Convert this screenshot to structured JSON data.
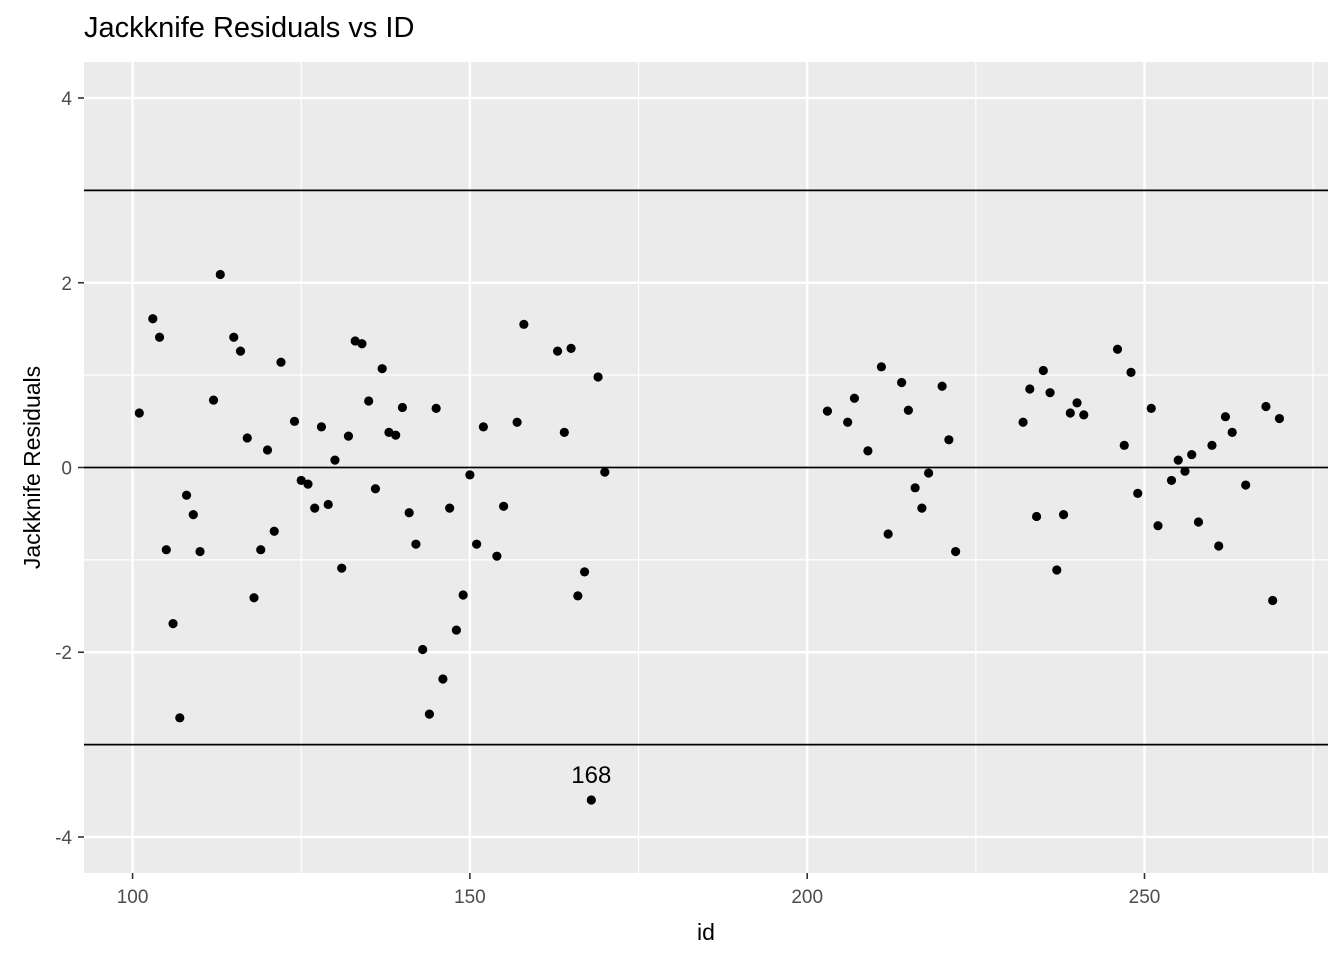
{
  "chart_data": {
    "type": "scatter",
    "title": "Jackknife Residuals vs ID",
    "xlabel": "id",
    "ylabel": "Jackknife Residuals",
    "xlim": [
      92.8,
      277.2
    ],
    "ylim": [
      -4.39,
      4.39
    ],
    "x_ticks": [
      100,
      150,
      200,
      250
    ],
    "y_ticks": [
      -4,
      -2,
      0,
      2,
      4
    ],
    "x_tick_labels": [
      "100",
      "150",
      "200",
      "250"
    ],
    "y_tick_labels": [
      "-4",
      "-2",
      "0",
      "2",
      "4"
    ],
    "grid": true,
    "background": "#ebebeb",
    "point_color": "#000000",
    "hlines": [
      3,
      0,
      -3
    ],
    "annotations": [
      {
        "text": "168",
        "x": 168,
        "y": -3.32
      }
    ],
    "points": [
      [
        101,
        0.59
      ],
      [
        103,
        1.61
      ],
      [
        104,
        1.41
      ],
      [
        105,
        -0.89
      ],
      [
        106,
        -1.69
      ],
      [
        107,
        -2.71
      ],
      [
        108,
        -0.3
      ],
      [
        109,
        -0.51
      ],
      [
        110,
        -0.91
      ],
      [
        112,
        0.73
      ],
      [
        113,
        2.09
      ],
      [
        115,
        1.41
      ],
      [
        116,
        1.26
      ],
      [
        117,
        0.32
      ],
      [
        118,
        -1.41
      ],
      [
        119,
        -0.89
      ],
      [
        120,
        0.19
      ],
      [
        121,
        -0.69
      ],
      [
        122,
        1.14
      ],
      [
        124,
        0.5
      ],
      [
        125,
        -0.14
      ],
      [
        126,
        -0.18
      ],
      [
        127,
        -0.44
      ],
      [
        128,
        0.44
      ],
      [
        129,
        -0.4
      ],
      [
        130,
        0.08
      ],
      [
        131,
        -1.09
      ],
      [
        132,
        0.34
      ],
      [
        133,
        1.37
      ],
      [
        134,
        1.34
      ],
      [
        135,
        0.72
      ],
      [
        136,
        -0.23
      ],
      [
        137,
        1.07
      ],
      [
        138,
        0.38
      ],
      [
        139,
        0.35
      ],
      [
        140,
        0.65
      ],
      [
        141,
        -0.49
      ],
      [
        142,
        -0.83
      ],
      [
        143,
        -1.97
      ],
      [
        144,
        -2.67
      ],
      [
        145,
        0.64
      ],
      [
        146,
        -2.29
      ],
      [
        147,
        -0.44
      ],
      [
        148,
        -1.76
      ],
      [
        149,
        -1.38
      ],
      [
        150,
        -0.08
      ],
      [
        151,
        -0.83
      ],
      [
        152,
        0.44
      ],
      [
        154,
        -0.96
      ],
      [
        155,
        -0.42
      ],
      [
        157,
        0.49
      ],
      [
        158,
        1.55
      ],
      [
        163,
        1.26
      ],
      [
        164,
        0.38
      ],
      [
        165,
        1.29
      ],
      [
        166,
        -1.39
      ],
      [
        167,
        -1.13
      ],
      [
        168,
        -3.6
      ],
      [
        169,
        0.98
      ],
      [
        170,
        -0.05
      ],
      [
        203,
        0.61
      ],
      [
        206,
        0.49
      ],
      [
        207,
        0.75
      ],
      [
        209,
        0.18
      ],
      [
        211,
        1.09
      ],
      [
        212,
        -0.72
      ],
      [
        214,
        0.92
      ],
      [
        215,
        0.62
      ],
      [
        216,
        -0.22
      ],
      [
        217,
        -0.44
      ],
      [
        218,
        -0.06
      ],
      [
        220,
        0.88
      ],
      [
        221,
        0.3
      ],
      [
        222,
        -0.91
      ],
      [
        232,
        0.49
      ],
      [
        233,
        0.85
      ],
      [
        234,
        -0.53
      ],
      [
        235,
        1.05
      ],
      [
        236,
        0.81
      ],
      [
        237,
        -1.11
      ],
      [
        238,
        -0.51
      ],
      [
        239,
        0.59
      ],
      [
        240,
        0.7
      ],
      [
        241,
        0.57
      ],
      [
        246,
        1.28
      ],
      [
        247,
        0.24
      ],
      [
        248,
        1.03
      ],
      [
        249,
        -0.28
      ],
      [
        251,
        0.64
      ],
      [
        252,
        -0.63
      ],
      [
        254,
        -0.14
      ],
      [
        255,
        0.08
      ],
      [
        256,
        -0.04
      ],
      [
        257,
        0.14
      ],
      [
        258,
        -0.59
      ],
      [
        260,
        0.24
      ],
      [
        261,
        -0.85
      ],
      [
        262,
        0.55
      ],
      [
        263,
        0.38
      ],
      [
        265,
        -0.19
      ],
      [
        268,
        0.66
      ],
      [
        269,
        -1.44
      ],
      [
        270,
        0.53
      ]
    ]
  }
}
